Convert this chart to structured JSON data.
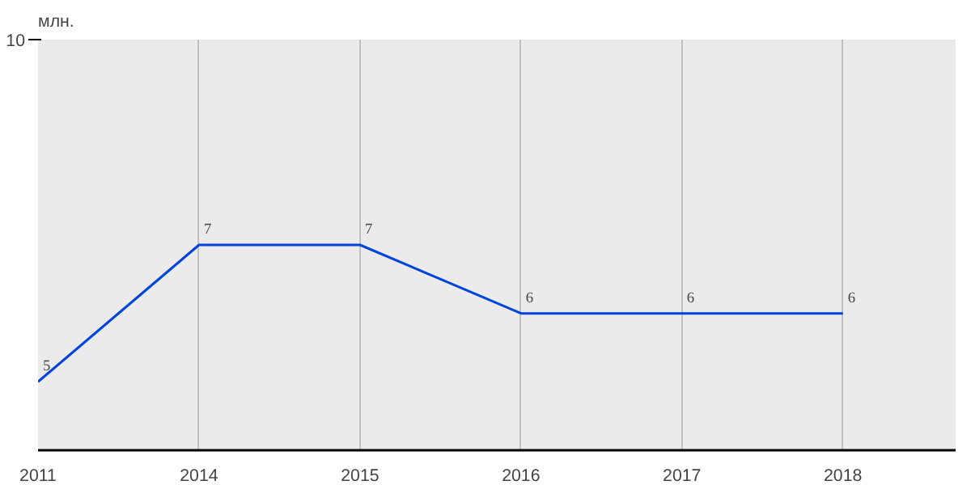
{
  "chart_data": {
    "type": "line",
    "annotations": [
      "10",
      "млн."
    ],
    "categories": [
      "2011",
      "2014",
      "2015",
      "2016",
      "2017",
      "2018"
    ],
    "series": [
      {
        "color": "#0044dd",
        "values": [
          5,
          7,
          7,
          6,
          6,
          6
        ]
      }
    ],
    "grid": "x",
    "data_labels": true,
    "marker": "none",
    "line_style": "solid"
  }
}
